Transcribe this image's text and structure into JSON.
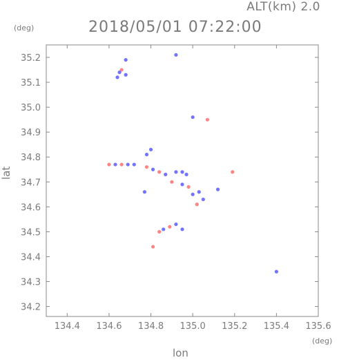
{
  "header": {
    "altitude": "ALT(km) 2.0",
    "timestamp": "2018/05/01 07:22:00"
  },
  "chart_data": {
    "type": "scatter",
    "title": "2018/05/01 07:22:00",
    "subtitle": "ALT(km) 2.0",
    "xlabel": "lon",
    "ylabel": "lat",
    "x_unit": "(deg)",
    "y_unit": "(deg)",
    "xlim": [
      134.3,
      135.6
    ],
    "ylim": [
      34.16,
      35.25
    ],
    "xticks": [
      "134.4",
      "134.6",
      "134.8",
      "135.0",
      "135.2",
      "135.4",
      "135.6"
    ],
    "yticks": [
      "34.2",
      "34.3",
      "34.4",
      "34.5",
      "34.6",
      "34.7",
      "34.8",
      "34.9",
      "35.0",
      "35.1",
      "35.2"
    ],
    "grid": false,
    "colors": {
      "positive": "#ff6f6f",
      "negative": "#5b5bff",
      "neutral": "#c8c8ff"
    },
    "series": [
      {
        "name": "",
        "points": [
          {
            "lon": 134.68,
            "lat": 35.19,
            "v": -1
          },
          {
            "lon": 134.66,
            "lat": 35.15,
            "v": 1
          },
          {
            "lon": 134.65,
            "lat": 35.14,
            "v": -1
          },
          {
            "lon": 134.68,
            "lat": 35.13,
            "v": -1
          },
          {
            "lon": 134.64,
            "lat": 35.12,
            "v": -1
          },
          {
            "lon": 134.92,
            "lat": 35.21,
            "v": -1
          },
          {
            "lon": 135.0,
            "lat": 34.96,
            "v": -1
          },
          {
            "lon": 135.07,
            "lat": 34.95,
            "v": 1
          },
          {
            "lon": 134.8,
            "lat": 34.83,
            "v": -1
          },
          {
            "lon": 134.78,
            "lat": 34.81,
            "v": -1
          },
          {
            "lon": 134.6,
            "lat": 34.77,
            "v": 1
          },
          {
            "lon": 134.63,
            "lat": 34.77,
            "v": -1
          },
          {
            "lon": 134.66,
            "lat": 34.77,
            "v": 1
          },
          {
            "lon": 134.69,
            "lat": 34.77,
            "v": -1
          },
          {
            "lon": 134.72,
            "lat": 34.77,
            "v": -1
          },
          {
            "lon": 134.78,
            "lat": 34.76,
            "v": 1
          },
          {
            "lon": 134.81,
            "lat": 34.75,
            "v": -1
          },
          {
            "lon": 134.84,
            "lat": 34.74,
            "v": 1
          },
          {
            "lon": 134.87,
            "lat": 34.73,
            "v": -1
          },
          {
            "lon": 134.92,
            "lat": 34.74,
            "v": -1
          },
          {
            "lon": 134.95,
            "lat": 34.74,
            "v": -1
          },
          {
            "lon": 134.97,
            "lat": 34.73,
            "v": -1
          },
          {
            "lon": 134.9,
            "lat": 34.7,
            "v": 1
          },
          {
            "lon": 134.95,
            "lat": 34.69,
            "v": -1
          },
          {
            "lon": 134.98,
            "lat": 34.68,
            "v": 1
          },
          {
            "lon": 135.0,
            "lat": 34.65,
            "v": -1
          },
          {
            "lon": 135.03,
            "lat": 34.66,
            "v": -1
          },
          {
            "lon": 135.05,
            "lat": 34.63,
            "v": -1
          },
          {
            "lon": 135.02,
            "lat": 34.61,
            "v": 1
          },
          {
            "lon": 135.12,
            "lat": 34.67,
            "v": -1
          },
          {
            "lon": 135.19,
            "lat": 34.74,
            "v": 1
          },
          {
            "lon": 134.77,
            "lat": 34.66,
            "v": -1
          },
          {
            "lon": 134.92,
            "lat": 34.53,
            "v": -1
          },
          {
            "lon": 134.89,
            "lat": 34.52,
            "v": 1
          },
          {
            "lon": 134.86,
            "lat": 34.51,
            "v": -1
          },
          {
            "lon": 134.84,
            "lat": 34.5,
            "v": 1
          },
          {
            "lon": 134.95,
            "lat": 34.51,
            "v": -1
          },
          {
            "lon": 134.81,
            "lat": 34.44,
            "v": 1
          },
          {
            "lon": 135.4,
            "lat": 34.34,
            "v": -1
          }
        ]
      }
    ]
  }
}
